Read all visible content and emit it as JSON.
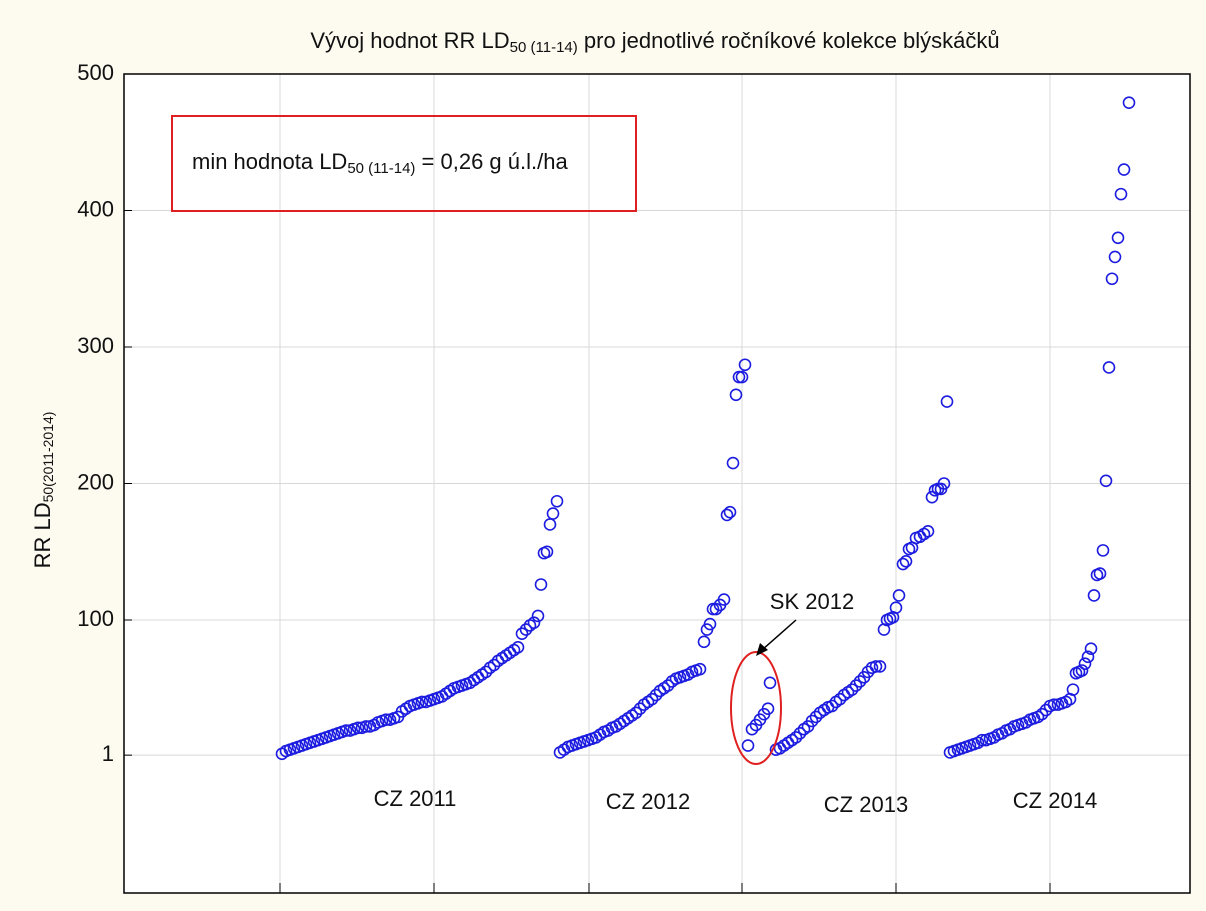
{
  "chart_data": {
    "type": "scatter",
    "title": [
      "Vývoj hodnot RR LD",
      "50 (11-14)",
      " pro jednotlivé ročníkové kolekce blýskáčků"
    ],
    "ylabel": [
      "RR LD",
      "50(2011-2014)"
    ],
    "box_text": [
      "min hodnota LD",
      "50 (11-14)",
      " = 0,26 g ú.l./ha"
    ],
    "annotations": [
      "CZ 2011",
      "CZ 2012",
      "SK 2012",
      "CZ 2013",
      "CZ 2014"
    ],
    "color": "#1c1ce0",
    "grid": true,
    "xlim": [
      124,
      1190
    ],
    "xticks": [
      280,
      434,
      589,
      742,
      896,
      1050
    ],
    "ylim": [
      -100,
      500
    ],
    "yticks": [
      1,
      100,
      200,
      300,
      400,
      500
    ],
    "x": [
      282,
      286,
      290,
      294,
      298,
      302,
      306,
      310,
      314,
      318,
      322,
      326,
      330,
      334,
      338,
      342,
      346,
      350,
      354,
      358,
      362,
      366,
      370,
      374,
      378,
      382,
      386,
      390,
      394,
      398,
      402,
      406,
      410,
      414,
      418,
      422,
      426,
      430,
      434,
      438,
      442,
      446,
      450,
      454,
      458,
      462,
      466,
      470,
      474,
      478,
      482,
      486,
      490,
      494,
      498,
      502,
      506,
      510,
      514,
      518,
      522,
      526,
      530,
      534,
      538,
      541,
      544,
      547,
      550,
      553,
      557,
      560,
      564,
      568,
      572,
      576,
      580,
      584,
      588,
      592,
      596,
      600,
      604,
      608,
      612,
      616,
      620,
      624,
      628,
      632,
      636,
      640,
      644,
      648,
      652,
      656,
      660,
      664,
      668,
      672,
      676,
      680,
      684,
      688,
      692,
      696,
      700,
      704,
      707,
      710,
      713,
      716,
      720,
      724,
      727,
      730,
      733,
      736,
      739,
      742,
      745,
      748,
      752,
      756,
      760,
      764,
      768,
      770,
      776,
      780,
      784,
      788,
      792,
      796,
      800,
      804,
      808,
      812,
      816,
      820,
      824,
      828,
      832,
      836,
      840,
      844,
      848,
      852,
      856,
      860,
      864,
      868,
      872,
      876,
      880,
      884,
      887,
      890,
      893,
      896,
      899,
      903,
      906,
      909,
      912,
      916,
      920,
      924,
      928,
      932,
      935,
      938,
      941,
      944,
      947,
      950,
      954,
      958,
      962,
      966,
      970,
      974,
      978,
      982,
      986,
      990,
      994,
      998,
      1002,
      1006,
      1010,
      1014,
      1018,
      1022,
      1026,
      1030,
      1034,
      1038,
      1042,
      1046,
      1050,
      1054,
      1058,
      1062,
      1066,
      1070,
      1073,
      1076,
      1079,
      1082,
      1085,
      1088,
      1091,
      1094,
      1097,
      1100,
      1103,
      1106,
      1109,
      1112,
      1115,
      1118,
      1121,
      1124,
      1129
    ],
    "values": [
      2,
      4,
      5,
      6,
      7,
      8,
      9,
      10,
      11,
      12,
      13,
      14,
      15,
      16,
      17,
      18,
      19,
      19,
      20,
      21,
      21,
      22,
      22,
      23,
      25,
      26,
      27,
      27,
      28,
      29,
      33,
      35,
      37,
      38,
      39,
      40,
      40,
      41,
      42,
      43,
      44,
      46,
      48,
      50,
      51,
      52,
      53,
      54,
      56,
      58,
      60,
      62,
      65,
      67,
      70,
      72,
      74,
      76,
      78,
      80,
      90,
      93,
      96,
      98,
      103,
      126,
      149,
      150,
      170,
      178,
      187,
      3,
      5,
      7,
      8,
      9,
      10,
      11,
      12,
      13,
      14,
      16,
      18,
      19,
      21,
      22,
      24,
      26,
      28,
      30,
      32,
      35,
      38,
      40,
      42,
      45,
      48,
      50,
      52,
      55,
      57,
      58,
      59,
      60,
      62,
      63,
      64,
      84,
      93,
      97,
      108,
      108,
      111,
      115,
      177,
      179,
      215,
      265,
      278,
      278,
      287,
      8,
      20,
      23,
      27,
      31,
      35,
      54,
      5,
      6,
      8,
      10,
      12,
      14,
      17,
      20,
      22,
      26,
      29,
      32,
      34,
      36,
      37,
      40,
      42,
      45,
      47,
      49,
      52,
      55,
      58,
      62,
      65,
      66,
      66,
      93,
      100,
      101,
      102,
      109,
      118,
      141,
      143,
      152,
      153,
      160,
      161,
      163,
      165,
      190,
      195,
      196,
      196,
      200,
      260,
      3,
      4,
      5,
      6,
      7,
      8,
      9,
      10,
      12,
      12,
      13,
      14,
      16,
      17,
      19,
      20,
      22,
      23,
      24,
      25,
      27,
      28,
      29,
      31,
      34,
      37,
      38,
      38,
      39,
      40,
      42,
      49,
      61,
      62,
      63,
      68,
      73,
      79,
      118,
      133,
      134,
      151,
      202,
      285,
      350,
      366,
      380,
      412,
      430,
      479
    ]
  }
}
